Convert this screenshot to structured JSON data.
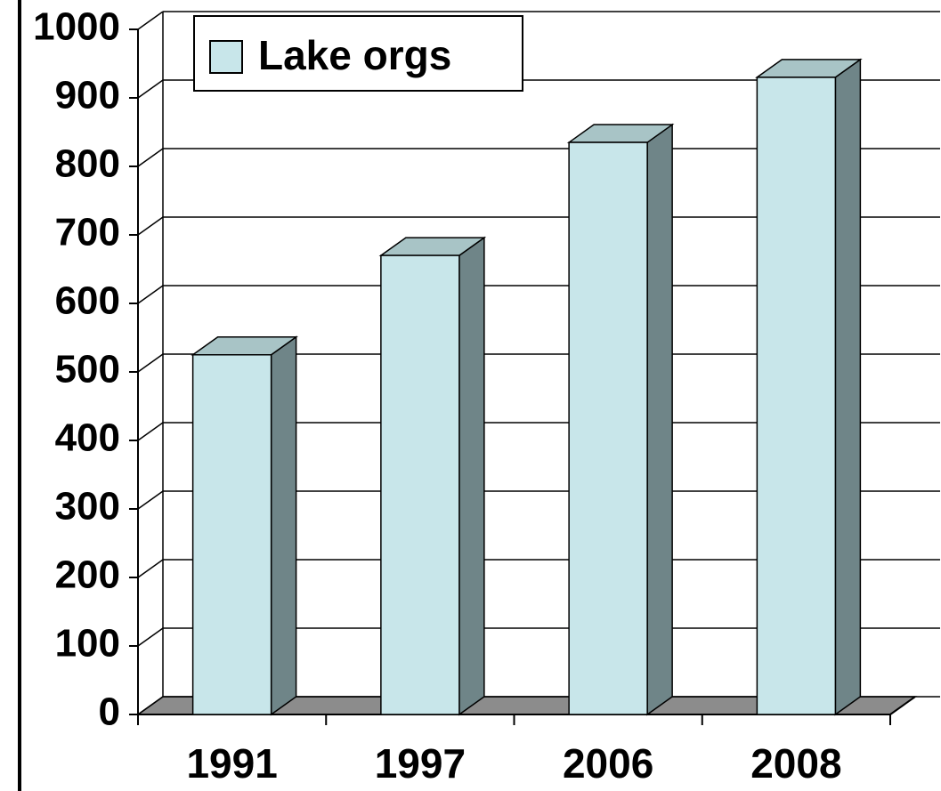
{
  "chart_data": {
    "type": "bar3d",
    "categories": [
      "1991",
      "1997",
      "2006",
      "2008"
    ],
    "series": [
      {
        "name": "Lake orgs",
        "color": "#c8e6ea",
        "values": [
          525,
          670,
          835,
          930
        ]
      }
    ],
    "ylim": [
      0,
      1000
    ],
    "yticks": [
      0,
      100,
      200,
      300,
      400,
      500,
      600,
      700,
      800,
      900,
      1000
    ],
    "grid": true,
    "legend": "top-left"
  }
}
